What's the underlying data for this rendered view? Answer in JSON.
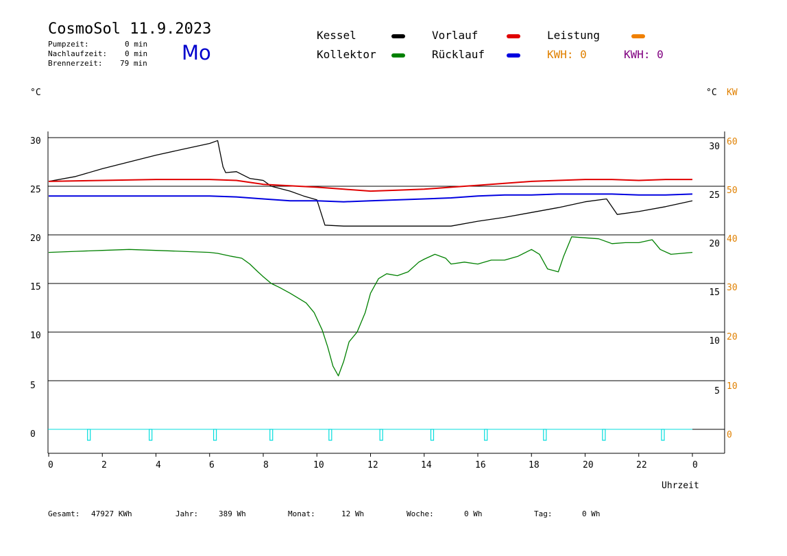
{
  "header": {
    "title": "CosmoSol 11.9.2023",
    "day": "Mo",
    "stats": [
      {
        "label": "Pumpzeit:",
        "value": "0 min"
      },
      {
        "label": "Nachlaufzeit:",
        "value": "0 min"
      },
      {
        "label": "Brennerzeit:",
        "value": "79 min"
      }
    ]
  },
  "legend": {
    "kessel": "Kessel",
    "kollektor": "Kollektor",
    "vorlauf": "Vorlauf",
    "ruecklauf": "Rücklauf",
    "leistung": "Leistung",
    "kwh1": "KWH: 0",
    "kwh2": "KWH: 0"
  },
  "colors": {
    "kessel": "#000000",
    "kollektor": "#008000",
    "vorlauf": "#e00000",
    "ruecklauf": "#0000e0",
    "leistung": "#f08000",
    "kwh2": "#800080",
    "pump": "#00dddd",
    "axis_right_orange": "#e08000"
  },
  "axes": {
    "left_unit": "°C",
    "right_unit": "°C",
    "right_unit2": "KW",
    "xlabel": "Uhrzeit"
  },
  "footer": [
    {
      "label": "Gesamt:",
      "value": "47927 KWh"
    },
    {
      "label": "Jahr:",
      "value": "389 Wh"
    },
    {
      "label": "Monat:",
      "value": "12 Wh"
    },
    {
      "label": "Woche:",
      "value": "0 Wh"
    },
    {
      "label": "Tag:",
      "value": "0 Wh"
    }
  ],
  "chart_data": {
    "type": "line",
    "xlabel": "Uhrzeit",
    "ylabel": "°C",
    "xlim": [
      0,
      24
    ],
    "ylim": [
      -2.5,
      30
    ],
    "grid": true,
    "x_ticks": [
      "0",
      "2",
      "4",
      "6",
      "8",
      "10",
      "12",
      "14",
      "16",
      "18",
      "20",
      "22",
      "0"
    ],
    "y_ticks_left": [
      "30",
      "25",
      "20",
      "15",
      "10",
      "5",
      "0"
    ],
    "y_ticks_right_c": [
      "30",
      "25",
      "20",
      "15",
      "10",
      "5"
    ],
    "y_ticks_right_kw": [
      "60",
      "50",
      "40",
      "30",
      "20",
      "10",
      "0"
    ],
    "series": [
      {
        "name": "Kessel",
        "points": [
          [
            0,
            25.5
          ],
          [
            1,
            26
          ],
          [
            2,
            26.8
          ],
          [
            3,
            27.5
          ],
          [
            4,
            28.2
          ],
          [
            5,
            28.8
          ],
          [
            6,
            29.4
          ],
          [
            6.3,
            29.7
          ],
          [
            6.5,
            27
          ],
          [
            6.6,
            26.4
          ],
          [
            7,
            26.5
          ],
          [
            7.5,
            25.8
          ],
          [
            8,
            25.6
          ],
          [
            8.3,
            25
          ],
          [
            9,
            24.5
          ],
          [
            9.5,
            24
          ],
          [
            10,
            23.6
          ],
          [
            10.3,
            21
          ],
          [
            11,
            20.9
          ],
          [
            12,
            20.9
          ],
          [
            13,
            20.9
          ],
          [
            14,
            20.9
          ],
          [
            15,
            20.9
          ],
          [
            16,
            21.4
          ],
          [
            17,
            21.8
          ],
          [
            18,
            22.3
          ],
          [
            19,
            22.8
          ],
          [
            20,
            23.4
          ],
          [
            20.8,
            23.7
          ],
          [
            21.2,
            22.1
          ],
          [
            22,
            22.4
          ],
          [
            23,
            22.9
          ],
          [
            24,
            23.5
          ]
        ]
      },
      {
        "name": "Vorlauf",
        "points": [
          [
            0,
            25.5
          ],
          [
            2,
            25.6
          ],
          [
            4,
            25.7
          ],
          [
            6,
            25.7
          ],
          [
            7,
            25.6
          ],
          [
            8,
            25.2
          ],
          [
            10,
            24.9
          ],
          [
            11,
            24.7
          ],
          [
            12,
            24.5
          ],
          [
            13,
            24.6
          ],
          [
            14,
            24.7
          ],
          [
            15,
            24.9
          ],
          [
            16,
            25.1
          ],
          [
            17,
            25.3
          ],
          [
            18,
            25.5
          ],
          [
            19,
            25.6
          ],
          [
            20,
            25.7
          ],
          [
            21,
            25.7
          ],
          [
            22,
            25.6
          ],
          [
            23,
            25.7
          ],
          [
            24,
            25.7
          ]
        ]
      },
      {
        "name": "Rücklauf",
        "points": [
          [
            0,
            24
          ],
          [
            2,
            24
          ],
          [
            4,
            24
          ],
          [
            6,
            24
          ],
          [
            7,
            23.9
          ],
          [
            8,
            23.7
          ],
          [
            9,
            23.5
          ],
          [
            10,
            23.5
          ],
          [
            11,
            23.4
          ],
          [
            12,
            23.5
          ],
          [
            13,
            23.6
          ],
          [
            14,
            23.7
          ],
          [
            15,
            23.8
          ],
          [
            16,
            24
          ],
          [
            17,
            24.1
          ],
          [
            18,
            24.1
          ],
          [
            19,
            24.2
          ],
          [
            20,
            24.2
          ],
          [
            21,
            24.2
          ],
          [
            22,
            24.1
          ],
          [
            23,
            24.1
          ],
          [
            24,
            24.2
          ]
        ]
      },
      {
        "name": "Kollektor",
        "points": [
          [
            0,
            18.2
          ],
          [
            1,
            18.3
          ],
          [
            2,
            18.4
          ],
          [
            3,
            18.5
          ],
          [
            4,
            18.4
          ],
          [
            5,
            18.3
          ],
          [
            6,
            18.2
          ],
          [
            6.3,
            18.1
          ],
          [
            6.8,
            17.8
          ],
          [
            7.2,
            17.6
          ],
          [
            7.5,
            17
          ],
          [
            7.8,
            16.2
          ],
          [
            8,
            15.7
          ],
          [
            8.3,
            15
          ],
          [
            8.6,
            14.6
          ],
          [
            9,
            14
          ],
          [
            9.3,
            13.5
          ],
          [
            9.6,
            13
          ],
          [
            9.9,
            12
          ],
          [
            10.2,
            10.2
          ],
          [
            10.4,
            8.5
          ],
          [
            10.6,
            6.5
          ],
          [
            10.8,
            5.5
          ],
          [
            11,
            7
          ],
          [
            11.2,
            9
          ],
          [
            11.5,
            10
          ],
          [
            11.8,
            12
          ],
          [
            12,
            14
          ],
          [
            12.3,
            15.5
          ],
          [
            12.6,
            16
          ],
          [
            13,
            15.8
          ],
          [
            13.4,
            16.2
          ],
          [
            13.8,
            17.2
          ],
          [
            14,
            17.5
          ],
          [
            14.4,
            18
          ],
          [
            14.8,
            17.6
          ],
          [
            15,
            17
          ],
          [
            15.5,
            17.2
          ],
          [
            16,
            17
          ],
          [
            16.5,
            17.4
          ],
          [
            17,
            17.4
          ],
          [
            17.5,
            17.8
          ],
          [
            18,
            18.5
          ],
          [
            18.3,
            18
          ],
          [
            18.6,
            16.5
          ],
          [
            19,
            16.2
          ],
          [
            19.2,
            17.8
          ],
          [
            19.5,
            19.8
          ],
          [
            20,
            19.7
          ],
          [
            20.5,
            19.6
          ],
          [
            21,
            19.1
          ],
          [
            21.5,
            19.2
          ],
          [
            22,
            19.2
          ],
          [
            22.5,
            19.5
          ],
          [
            22.8,
            18.5
          ],
          [
            23.2,
            18
          ],
          [
            23.6,
            18.1
          ],
          [
            24,
            18.2
          ]
        ]
      }
    ],
    "pump_markers_h": [
      1.5,
      3.8,
      6.2,
      8.3,
      10.5,
      12.4,
      14.3,
      16.3,
      18.5,
      20.7,
      22.9
    ]
  }
}
